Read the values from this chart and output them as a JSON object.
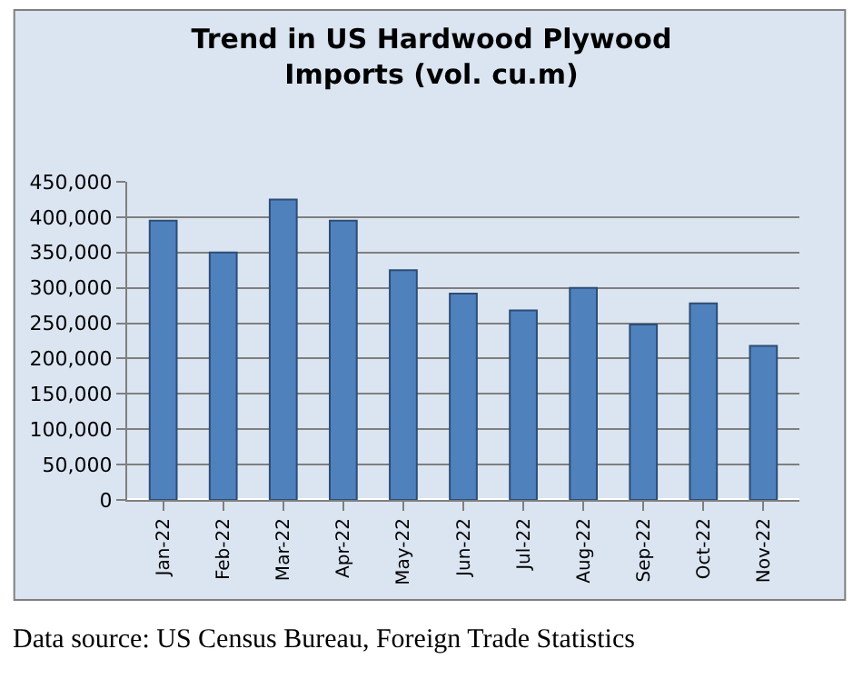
{
  "chart_data": {
    "type": "bar",
    "title": "Trend in US Hardwood Plywood\nImports (vol. cu.m)",
    "categories": [
      "Jan-22",
      "Feb-22",
      "Mar-22",
      "Apr-22",
      "May-22",
      "Jun-22",
      "Jul-22",
      "Aug-22",
      "Sep-22",
      "Oct-22",
      "Nov-22"
    ],
    "values": [
      395000,
      350000,
      425000,
      395000,
      325000,
      292000,
      268000,
      300000,
      248000,
      278000,
      218000
    ],
    "color": "#4f81bd",
    "ylim": [
      0,
      450000
    ],
    "yticks": [
      {
        "value": 0,
        "label": "0"
      },
      {
        "value": 50000,
        "label": "50,000"
      },
      {
        "value": 100000,
        "label": "100,000"
      },
      {
        "value": 150000,
        "label": "150,000"
      },
      {
        "value": 200000,
        "label": "200,000"
      },
      {
        "value": 250000,
        "label": "250,000"
      },
      {
        "value": 300000,
        "label": "300,000"
      },
      {
        "value": 350000,
        "label": "350,000"
      },
      {
        "value": 400000,
        "label": "400,000"
      },
      {
        "value": 450000,
        "label": "450,000"
      }
    ],
    "grid": "y",
    "annotations": [
      "Data source: US Census Bureau, Foreign Trade Statistics"
    ]
  }
}
